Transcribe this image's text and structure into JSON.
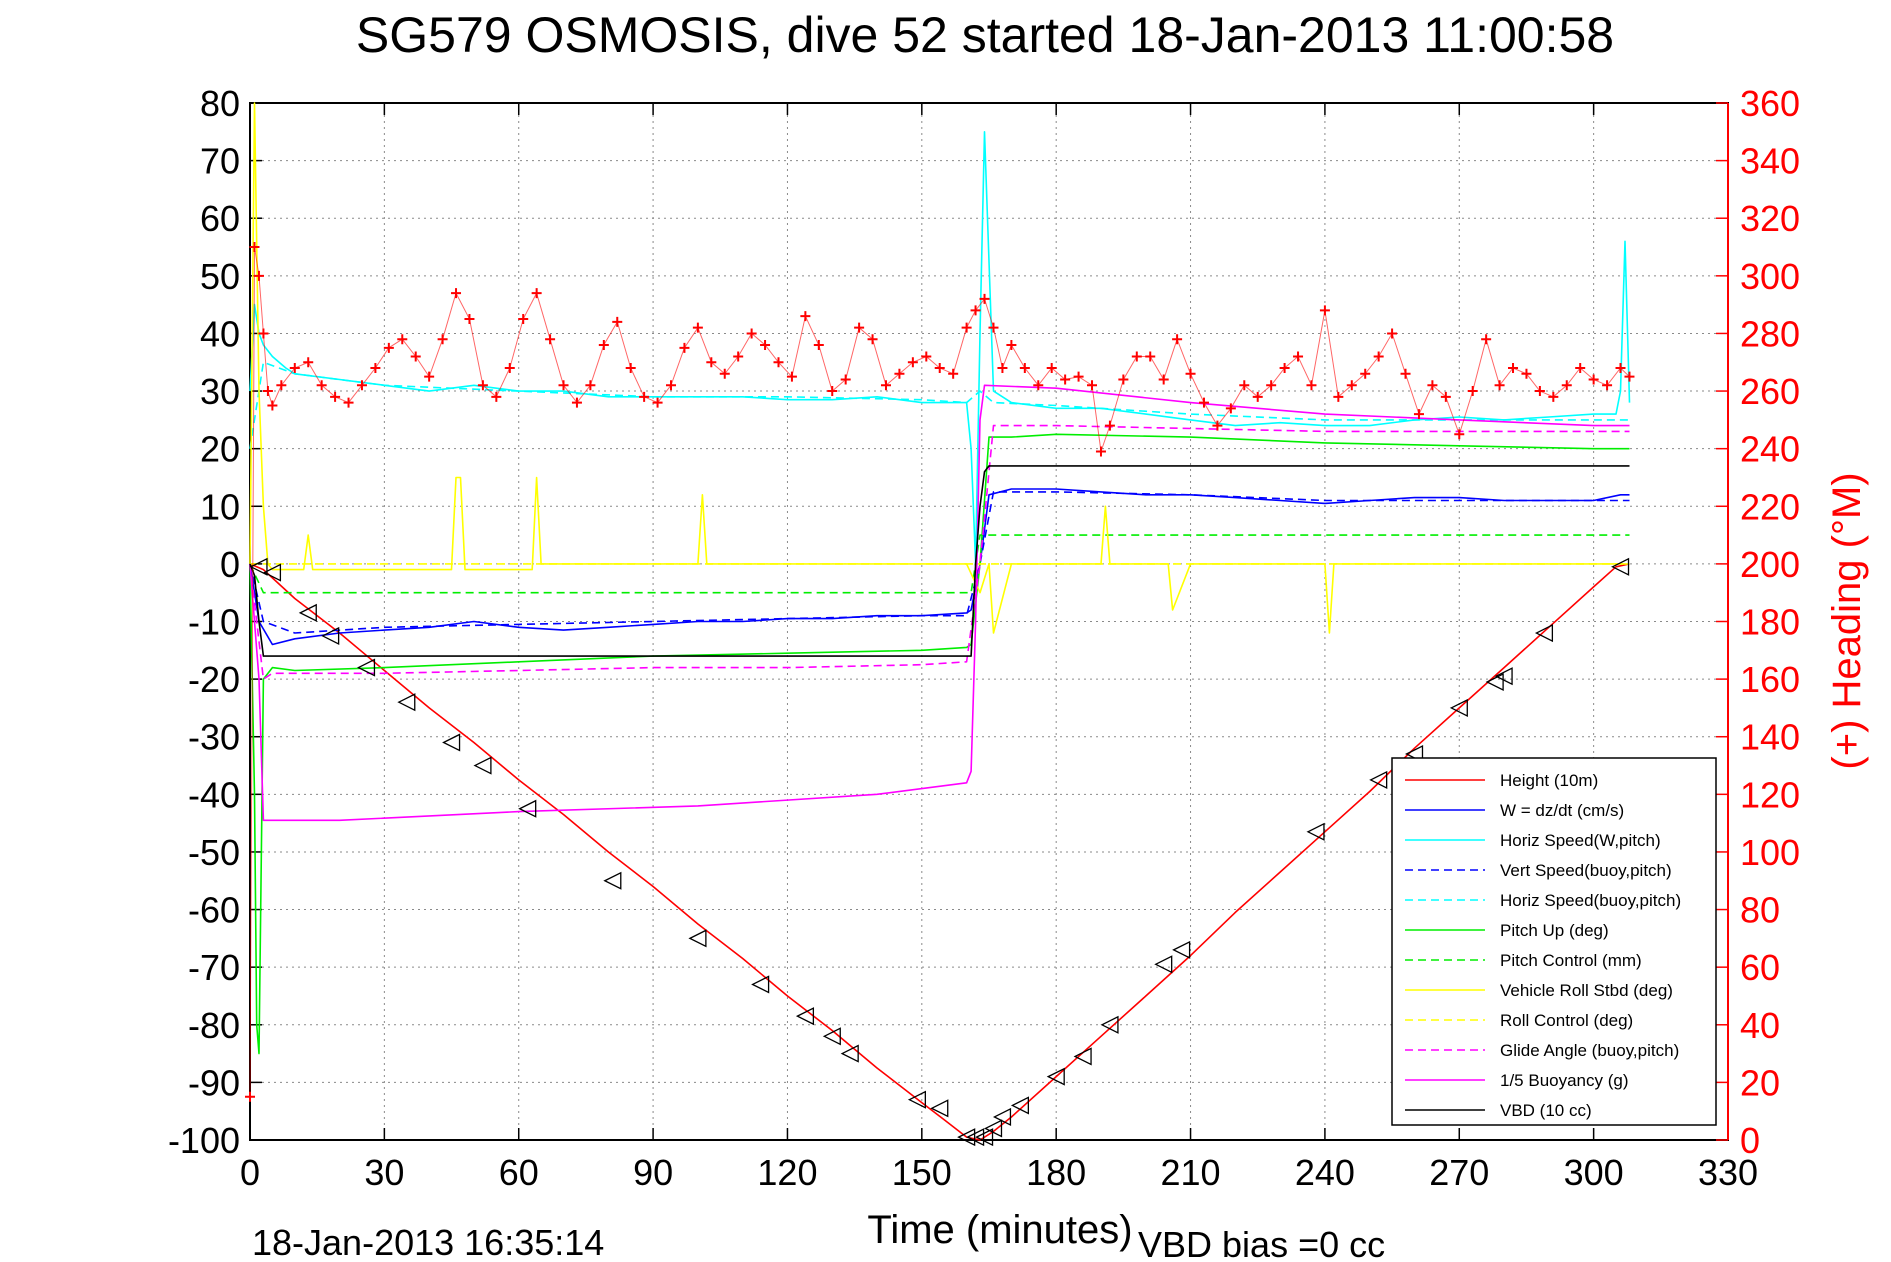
{
  "page": {
    "title": "SG579 OSMOSIS, dive 52 started 18-Jan-2013 11:00:58",
    "footer_timestamp": "18-Jan-2013 16:35:14",
    "footer_vbd_bias": "VBD bias =0 cc"
  },
  "chart_data": {
    "type": "line",
    "title": "SG579 OSMOSIS, dive 52 started 18-Jan-2013 11:00:58",
    "xlabel": "Time (minutes)",
    "ylabel": "",
    "y2label": "(+) Heading (°M)",
    "xlim": [
      0,
      330
    ],
    "ylim": [
      -100,
      80
    ],
    "y2lim": [
      0,
      360
    ],
    "x_ticks": [
      0,
      30,
      60,
      90,
      120,
      150,
      180,
      210,
      240,
      270,
      300,
      330
    ],
    "y_ticks": [
      80,
      70,
      60,
      50,
      40,
      30,
      20,
      10,
      0,
      -10,
      -20,
      -30,
      -40,
      -50,
      -60,
      -70,
      -80,
      -90,
      -100
    ],
    "y2_ticks": [
      360,
      340,
      320,
      300,
      280,
      260,
      240,
      220,
      200,
      180,
      160,
      140,
      120,
      100,
      80,
      60,
      40,
      20,
      0
    ],
    "grid": true,
    "legend_position": "bottom-right",
    "colors": {
      "red": "#ff0000",
      "blue": "#0000ff",
      "cyan": "#00ffff",
      "green": "#00ee00",
      "yellow": "#ffff00",
      "magenta": "#ff00ff",
      "black": "#000000"
    },
    "series": [
      {
        "name": "Height (10m)",
        "color": "#ff0000",
        "dash": "solid",
        "x": [
          0,
          3,
          10,
          20,
          30,
          40,
          50,
          60,
          70,
          80,
          90,
          100,
          110,
          120,
          130,
          140,
          150,
          155,
          160,
          163,
          166,
          170,
          180,
          190,
          200,
          210,
          220,
          230,
          240,
          250,
          260,
          270,
          280,
          290,
          300,
          305,
          308
        ],
        "y": [
          0,
          -1,
          -6,
          -12,
          -18.5,
          -25,
          -31,
          -37.5,
          -43.5,
          -50,
          -56,
          -62.5,
          -68.5,
          -75,
          -81,
          -87.5,
          -93.5,
          -96.5,
          -99.5,
          -100,
          -98.5,
          -96,
          -89,
          -82,
          -75,
          -68,
          -60.5,
          -53.5,
          -46.5,
          -39.5,
          -32,
          -25,
          -18,
          -11,
          -4,
          -0.5,
          0
        ]
      },
      {
        "name": "W = dz/dt (cm/s)",
        "color": "#0000ff",
        "dash": "solid",
        "x": [
          0,
          1,
          2,
          5,
          10,
          20,
          30,
          40,
          50,
          60,
          70,
          80,
          90,
          100,
          110,
          120,
          130,
          140,
          150,
          160,
          161,
          163,
          165,
          170,
          180,
          190,
          200,
          210,
          220,
          230,
          240,
          250,
          260,
          270,
          280,
          290,
          300,
          306,
          308
        ],
        "y": [
          0,
          -5,
          -10,
          -14,
          -13,
          -12,
          -11.5,
          -11,
          -10,
          -11,
          -11.5,
          -11,
          -10.5,
          -10,
          -10,
          -9.5,
          -9.5,
          -9,
          -9,
          -8.5,
          -8,
          0,
          12,
          13,
          13,
          12.5,
          12,
          12,
          11.5,
          11,
          10.5,
          11,
          11.5,
          11.5,
          11,
          11,
          11,
          12,
          12
        ]
      },
      {
        "name": "Horiz Speed(W,pitch)",
        "color": "#00ffff",
        "dash": "solid",
        "x": [
          0,
          1,
          2,
          3,
          5,
          8,
          10,
          20,
          30,
          40,
          50,
          60,
          70,
          80,
          90,
          100,
          110,
          120,
          130,
          140,
          150,
          155,
          160,
          161,
          162,
          163,
          164,
          166,
          170,
          180,
          190,
          200,
          210,
          220,
          230,
          240,
          250,
          260,
          270,
          280,
          290,
          300,
          305,
          306,
          307,
          308
        ],
        "y": [
          30,
          45,
          40,
          38,
          36,
          34,
          33,
          32,
          31,
          30,
          31,
          30,
          30,
          29,
          29,
          29,
          29,
          28.5,
          28.5,
          29,
          28,
          28,
          28,
          20,
          0,
          40,
          75,
          30,
          28,
          27,
          27,
          26,
          25,
          24,
          24.5,
          24,
          24,
          25,
          25.5,
          25,
          25.5,
          26,
          26,
          30,
          56,
          28
        ]
      },
      {
        "name": "Vert Speed(buoy,pitch)",
        "color": "#0000ff",
        "dash": "dashed",
        "x": [
          0,
          3,
          10,
          30,
          60,
          90,
          120,
          150,
          160,
          163,
          166,
          180,
          210,
          240,
          270,
          300,
          308
        ],
        "y": [
          0,
          -10,
          -12,
          -11,
          -10.5,
          -10,
          -9.5,
          -9,
          -9,
          0,
          12.5,
          12.5,
          12,
          11,
          11,
          11,
          11
        ]
      },
      {
        "name": "Horiz Speed(buoy,pitch)",
        "color": "#00ffff",
        "dash": "dashed",
        "x": [
          0,
          3,
          10,
          30,
          60,
          90,
          120,
          150,
          160,
          163,
          166,
          180,
          210,
          240,
          270,
          300,
          308
        ],
        "y": [
          20,
          35,
          33,
          31,
          30,
          29,
          29,
          28.5,
          28,
          30,
          28,
          27.5,
          26,
          25,
          25,
          25,
          25
        ]
      },
      {
        "name": "Pitch Up (deg)",
        "color": "#00ee00",
        "dash": "solid",
        "x": [
          0,
          1,
          1.5,
          2,
          3,
          5,
          10,
          30,
          60,
          90,
          120,
          150,
          160,
          161,
          163,
          165,
          170,
          180,
          210,
          240,
          270,
          300,
          308
        ],
        "y": [
          0,
          -40,
          -80,
          -85,
          -20,
          -18,
          -18.5,
          -18,
          -17,
          -16,
          -15.5,
          -15,
          -14.5,
          -14,
          0,
          22,
          22,
          22.5,
          22,
          21,
          20.5,
          20,
          20
        ]
      },
      {
        "name": "Pitch Control (mm)",
        "color": "#00ee00",
        "dash": "dashed",
        "x": [
          0,
          3,
          5,
          160,
          161,
          163,
          165,
          308
        ],
        "y": [
          0,
          -5,
          -5,
          -5,
          -5,
          5,
          5,
          5
        ]
      },
      {
        "name": "Vehicle Roll Stbd (deg)",
        "color": "#ffff00",
        "dash": "solid",
        "x": [
          0,
          1,
          2,
          3,
          4,
          5,
          12,
          13,
          14,
          45,
          46,
          47,
          48,
          63,
          64,
          65,
          100,
          101,
          102,
          150,
          160,
          163,
          165,
          166,
          170,
          190,
          191,
          192,
          205,
          206,
          210,
          240,
          241,
          242,
          290,
          300,
          308
        ],
        "y": [
          0,
          80,
          30,
          10,
          0,
          -1,
          -1,
          5,
          -1,
          -1,
          15,
          15,
          -1,
          -1,
          15,
          0,
          0,
          12,
          0,
          0,
          0,
          -5,
          0,
          -12,
          0,
          0,
          10,
          0,
          0,
          -8,
          0,
          0,
          -12,
          0,
          0,
          0,
          0
        ]
      },
      {
        "name": "Roll Control (deg)",
        "color": "#ffff00",
        "dash": "dashed",
        "x": [
          0,
          3,
          160,
          163,
          308
        ],
        "y": [
          0,
          0,
          0,
          0,
          0
        ]
      },
      {
        "name": "Glide Angle (buoy,pitch)",
        "color": "#ff00ff",
        "dash": "dashed",
        "x": [
          0,
          3,
          5,
          30,
          60,
          90,
          120,
          150,
          160,
          163,
          166,
          180,
          210,
          240,
          270,
          300,
          308
        ],
        "y": [
          0,
          -20,
          -19,
          -19,
          -18.5,
          -18,
          -18,
          -17.5,
          -17,
          0,
          24,
          24,
          23.5,
          23,
          23,
          23,
          23
        ]
      },
      {
        "name": "1/5 Buoyancy (g)",
        "color": "#ff00ff",
        "dash": "solid",
        "x": [
          0,
          2,
          3,
          4,
          20,
          60,
          100,
          140,
          160,
          161,
          162,
          163,
          164,
          180,
          210,
          240,
          270,
          300,
          308
        ],
        "y": [
          0,
          -20,
          -44.5,
          -44.5,
          -44.5,
          -43,
          -42,
          -40,
          -38,
          -36,
          -10,
          25,
          31,
          30.5,
          28,
          26,
          25,
          24,
          24
        ]
      },
      {
        "name": "VBD (10 cc)",
        "color": "#000000",
        "dash": "solid",
        "x": [
          0,
          1,
          2,
          3,
          160,
          161,
          162,
          163,
          164,
          165,
          308
        ],
        "y": [
          0,
          -2,
          -10,
          -16,
          -16,
          -16,
          0,
          10,
          16,
          17,
          17
        ]
      }
    ],
    "heading_series": {
      "name": "Heading",
      "color": "#ff0000",
      "marker": "+",
      "axis": "right",
      "x": [
        0,
        1,
        2,
        3,
        4,
        5,
        7,
        10,
        13,
        16,
        19,
        22,
        25,
        28,
        31,
        34,
        37,
        40,
        43,
        46,
        49,
        52,
        55,
        58,
        61,
        64,
        67,
        70,
        73,
        76,
        79,
        82,
        85,
        88,
        91,
        94,
        97,
        100,
        103,
        106,
        109,
        112,
        115,
        118,
        121,
        124,
        127,
        130,
        133,
        136,
        139,
        142,
        145,
        148,
        151,
        154,
        157,
        160,
        162,
        164,
        166,
        168,
        170,
        173,
        176,
        179,
        182,
        185,
        188,
        190,
        192,
        195,
        198,
        201,
        204,
        207,
        210,
        213,
        216,
        219,
        222,
        225,
        228,
        231,
        234,
        237,
        240,
        243,
        246,
        249,
        252,
        255,
        258,
        261,
        264,
        267,
        270,
        273,
        276,
        279,
        282,
        285,
        288,
        291,
        294,
        297,
        300,
        303,
        306,
        308
      ],
      "y": [
        15,
        310,
        300,
        280,
        260,
        255,
        262,
        268,
        270,
        262,
        258,
        256,
        262,
        268,
        275,
        278,
        272,
        265,
        278,
        294,
        285,
        262,
        258,
        268,
        285,
        294,
        278,
        262,
        256,
        262,
        276,
        284,
        268,
        258,
        256,
        262,
        275,
        282,
        270,
        266,
        272,
        280,
        276,
        270,
        265,
        286,
        276,
        260,
        264,
        282,
        278,
        262,
        266,
        270,
        272,
        268,
        266,
        282,
        288,
        292,
        282,
        268,
        276,
        268,
        262,
        268,
        264,
        265,
        262,
        239,
        248,
        264,
        272,
        272,
        264,
        278,
        266,
        256,
        248,
        254,
        262,
        258,
        262,
        268,
        272,
        262,
        288,
        258,
        262,
        266,
        272,
        280,
        266,
        252,
        262,
        258,
        245,
        260,
        278,
        262,
        268,
        266,
        260,
        258,
        262,
        268,
        264,
        262,
        268,
        265
      ]
    },
    "dive_markers": {
      "name": "Sample markers",
      "color": "#000000",
      "marker": "triangle",
      "x": [
        2,
        5,
        13,
        18,
        26,
        35,
        45,
        52,
        62,
        81,
        100,
        114,
        124,
        130,
        134,
        149,
        154,
        160,
        162,
        164,
        166,
        168,
        172,
        180,
        186,
        192,
        204,
        208,
        238,
        252,
        260,
        270,
        278,
        280,
        289,
        306
      ],
      "y": [
        -0.5,
        -1.5,
        -8.5,
        -12.5,
        -18,
        -24,
        -31,
        -35,
        -42.5,
        -55,
        -65,
        -73,
        -78.5,
        -82,
        -85,
        -93,
        -94.5,
        -99.5,
        -99.5,
        -99.5,
        -98,
        -96,
        -94,
        -89,
        -85.5,
        -80,
        -69.5,
        -67,
        -46.5,
        -37.5,
        -33,
        -25,
        -20.5,
        -19.5,
        -12,
        -0.5
      ]
    }
  }
}
